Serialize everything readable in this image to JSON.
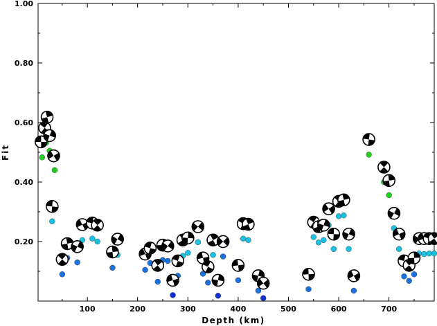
{
  "chart_data": {
    "type": "scatter",
    "xlabel": "Depth (km)",
    "ylabel": "Fit",
    "xlim": [
      2,
      790
    ],
    "ylim": [
      0,
      1.0
    ],
    "x_ticks": [
      100,
      200,
      300,
      400,
      500,
      600,
      700
    ],
    "x_tick_labels": [
      "100",
      "200",
      "300",
      "400",
      "500",
      "600",
      "700"
    ],
    "y_ticks": [
      0.2,
      0.4,
      0.6,
      0.8,
      1.0
    ],
    "y_tick_labels": [
      "0.20",
      "0.40",
      "0.60",
      "0.80",
      "1.00"
    ],
    "grid": false,
    "legend": "none",
    "colors": {
      "green": "#22d022",
      "cyan": "#1cc0e0",
      "blue": "#1a70dc",
      "darkblue": "#1030d0",
      "axis": "#000000"
    },
    "series": [
      {
        "marker": "focal-mechanism-beachball",
        "points": [
          {
            "x": 8,
            "y": 0.535
          },
          {
            "x": 15,
            "y": 0.582
          },
          {
            "x": 20,
            "y": 0.618
          },
          {
            "x": 25,
            "y": 0.556
          },
          {
            "x": 33,
            "y": 0.488
          },
          {
            "x": 30,
            "y": 0.318
          },
          {
            "x": 50,
            "y": 0.14
          },
          {
            "x": 60,
            "y": 0.193
          },
          {
            "x": 80,
            "y": 0.183
          },
          {
            "x": 90,
            "y": 0.257
          },
          {
            "x": 110,
            "y": 0.262
          },
          {
            "x": 120,
            "y": 0.255
          },
          {
            "x": 150,
            "y": 0.165
          },
          {
            "x": 160,
            "y": 0.208
          },
          {
            "x": 215,
            "y": 0.158
          },
          {
            "x": 225,
            "y": 0.178
          },
          {
            "x": 240,
            "y": 0.12
          },
          {
            "x": 250,
            "y": 0.188
          },
          {
            "x": 260,
            "y": 0.185
          },
          {
            "x": 270,
            "y": 0.07
          },
          {
            "x": 280,
            "y": 0.135
          },
          {
            "x": 290,
            "y": 0.205
          },
          {
            "x": 300,
            "y": 0.212
          },
          {
            "x": 320,
            "y": 0.25
          },
          {
            "x": 330,
            "y": 0.145
          },
          {
            "x": 340,
            "y": 0.115
          },
          {
            "x": 350,
            "y": 0.205
          },
          {
            "x": 360,
            "y": 0.07
          },
          {
            "x": 370,
            "y": 0.2
          },
          {
            "x": 400,
            "y": 0.12
          },
          {
            "x": 410,
            "y": 0.26
          },
          {
            "x": 420,
            "y": 0.258
          },
          {
            "x": 440,
            "y": 0.085
          },
          {
            "x": 450,
            "y": 0.06
          },
          {
            "x": 540,
            "y": 0.09
          },
          {
            "x": 550,
            "y": 0.265
          },
          {
            "x": 560,
            "y": 0.25
          },
          {
            "x": 570,
            "y": 0.255
          },
          {
            "x": 580,
            "y": 0.31
          },
          {
            "x": 590,
            "y": 0.225
          },
          {
            "x": 600,
            "y": 0.335
          },
          {
            "x": 610,
            "y": 0.34
          },
          {
            "x": 620,
            "y": 0.225
          },
          {
            "x": 630,
            "y": 0.085
          },
          {
            "x": 660,
            "y": 0.543
          },
          {
            "x": 690,
            "y": 0.45
          },
          {
            "x": 700,
            "y": 0.405
          },
          {
            "x": 710,
            "y": 0.295
          },
          {
            "x": 720,
            "y": 0.225
          },
          {
            "x": 730,
            "y": 0.135
          },
          {
            "x": 740,
            "y": 0.12
          },
          {
            "x": 750,
            "y": 0.145
          },
          {
            "x": 760,
            "y": 0.21
          },
          {
            "x": 770,
            "y": 0.21
          },
          {
            "x": 780,
            "y": 0.21
          },
          {
            "x": 790,
            "y": 0.21
          }
        ]
      },
      {
        "marker": "dot",
        "points": [
          {
            "x": 10,
            "y": 0.483,
            "c": "green"
          },
          {
            "x": 18,
            "y": 0.532,
            "c": "green"
          },
          {
            "x": 25,
            "y": 0.505,
            "c": "green"
          },
          {
            "x": 35,
            "y": 0.44,
            "c": "green"
          },
          {
            "x": 30,
            "y": 0.268,
            "c": "cyan"
          },
          {
            "x": 50,
            "y": 0.09,
            "c": "blue"
          },
          {
            "x": 60,
            "y": 0.145,
            "c": "blue"
          },
          {
            "x": 80,
            "y": 0.13,
            "c": "blue"
          },
          {
            "x": 90,
            "y": 0.205,
            "c": "cyan"
          },
          {
            "x": 110,
            "y": 0.21,
            "c": "cyan"
          },
          {
            "x": 120,
            "y": 0.2,
            "c": "cyan"
          },
          {
            "x": 150,
            "y": 0.112,
            "c": "blue"
          },
          {
            "x": 160,
            "y": 0.155,
            "c": "cyan"
          },
          {
            "x": 215,
            "y": 0.105,
            "c": "blue"
          },
          {
            "x": 225,
            "y": 0.128,
            "c": "blue"
          },
          {
            "x": 240,
            "y": 0.065,
            "c": "blue"
          },
          {
            "x": 250,
            "y": 0.138,
            "c": "blue"
          },
          {
            "x": 260,
            "y": 0.135,
            "c": "blue"
          },
          {
            "x": 270,
            "y": 0.02,
            "c": "darkblue"
          },
          {
            "x": 280,
            "y": 0.085,
            "c": "blue"
          },
          {
            "x": 290,
            "y": 0.152,
            "c": "cyan"
          },
          {
            "x": 300,
            "y": 0.162,
            "c": "cyan"
          },
          {
            "x": 320,
            "y": 0.198,
            "c": "cyan"
          },
          {
            "x": 330,
            "y": 0.092,
            "c": "blue"
          },
          {
            "x": 340,
            "y": 0.062,
            "c": "blue"
          },
          {
            "x": 350,
            "y": 0.155,
            "c": "cyan"
          },
          {
            "x": 360,
            "y": 0.018,
            "c": "darkblue"
          },
          {
            "x": 370,
            "y": 0.15,
            "c": "blue"
          },
          {
            "x": 400,
            "y": 0.07,
            "c": "blue"
          },
          {
            "x": 410,
            "y": 0.21,
            "c": "cyan"
          },
          {
            "x": 420,
            "y": 0.205,
            "c": "cyan"
          },
          {
            "x": 440,
            "y": 0.035,
            "c": "blue"
          },
          {
            "x": 450,
            "y": 0.01,
            "c": "darkblue"
          },
          {
            "x": 540,
            "y": 0.04,
            "c": "blue"
          },
          {
            "x": 550,
            "y": 0.215,
            "c": "cyan"
          },
          {
            "x": 560,
            "y": 0.197,
            "c": "cyan"
          },
          {
            "x": 570,
            "y": 0.205,
            "c": "cyan"
          },
          {
            "x": 580,
            "y": 0.255,
            "c": "cyan"
          },
          {
            "x": 590,
            "y": 0.175,
            "c": "cyan"
          },
          {
            "x": 600,
            "y": 0.285,
            "c": "cyan"
          },
          {
            "x": 610,
            "y": 0.288,
            "c": "cyan"
          },
          {
            "x": 620,
            "y": 0.175,
            "c": "cyan"
          },
          {
            "x": 630,
            "y": 0.035,
            "c": "blue"
          },
          {
            "x": 660,
            "y": 0.492,
            "c": "green"
          },
          {
            "x": 690,
            "y": 0.4,
            "c": "green"
          },
          {
            "x": 700,
            "y": 0.356,
            "c": "green"
          },
          {
            "x": 710,
            "y": 0.245,
            "c": "cyan"
          },
          {
            "x": 720,
            "y": 0.175,
            "c": "cyan"
          },
          {
            "x": 730,
            "y": 0.083,
            "c": "blue"
          },
          {
            "x": 740,
            "y": 0.068,
            "c": "blue"
          },
          {
            "x": 750,
            "y": 0.09,
            "c": "blue"
          },
          {
            "x": 760,
            "y": 0.16,
            "c": "cyan"
          },
          {
            "x": 770,
            "y": 0.158,
            "c": "cyan"
          },
          {
            "x": 780,
            "y": 0.16,
            "c": "cyan"
          },
          {
            "x": 790,
            "y": 0.16,
            "c": "cyan"
          }
        ]
      }
    ]
  }
}
